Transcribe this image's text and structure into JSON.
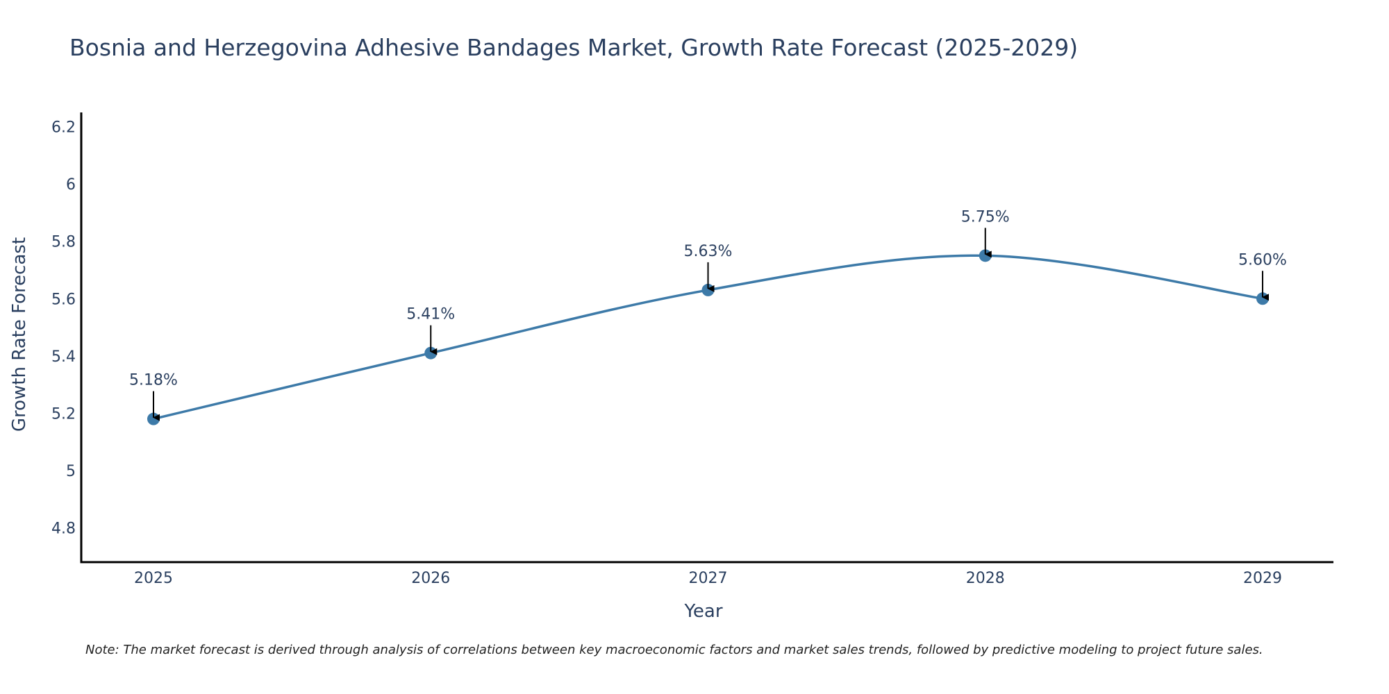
{
  "colors": {
    "line": "#3d7aa8",
    "marker": "#3d7aa8",
    "axis": "#000000",
    "text": "#2a3f5f",
    "arrow": "#000000"
  },
  "chart_data": {
    "type": "line",
    "title": "Bosnia and Herzegovina Adhesive Bandages Market, Growth Rate Forecast (2025-2029)",
    "xlabel": "Year",
    "ylabel": "Growth Rate Forecast",
    "categories": [
      "2025",
      "2026",
      "2027",
      "2028",
      "2029"
    ],
    "values": [
      5.18,
      5.41,
      5.63,
      5.75,
      5.6
    ],
    "data_labels": [
      "5.18%",
      "5.41%",
      "5.63%",
      "5.75%",
      "5.60%"
    ],
    "ylim": [
      4.68,
      6.25
    ],
    "yticks": [
      4.8,
      5,
      5.2,
      5.4,
      5.6,
      5.8,
      6,
      6.2
    ],
    "ytick_labels": [
      "4.8",
      "5",
      "5.2",
      "5.4",
      "5.6",
      "5.8",
      "6",
      "6.2"
    ],
    "grid": false,
    "line_shape": "spline"
  },
  "note": "Note: The market forecast is derived through analysis of correlations between key macroeconomic factors and market sales trends, followed by predictive modeling to project future sales."
}
